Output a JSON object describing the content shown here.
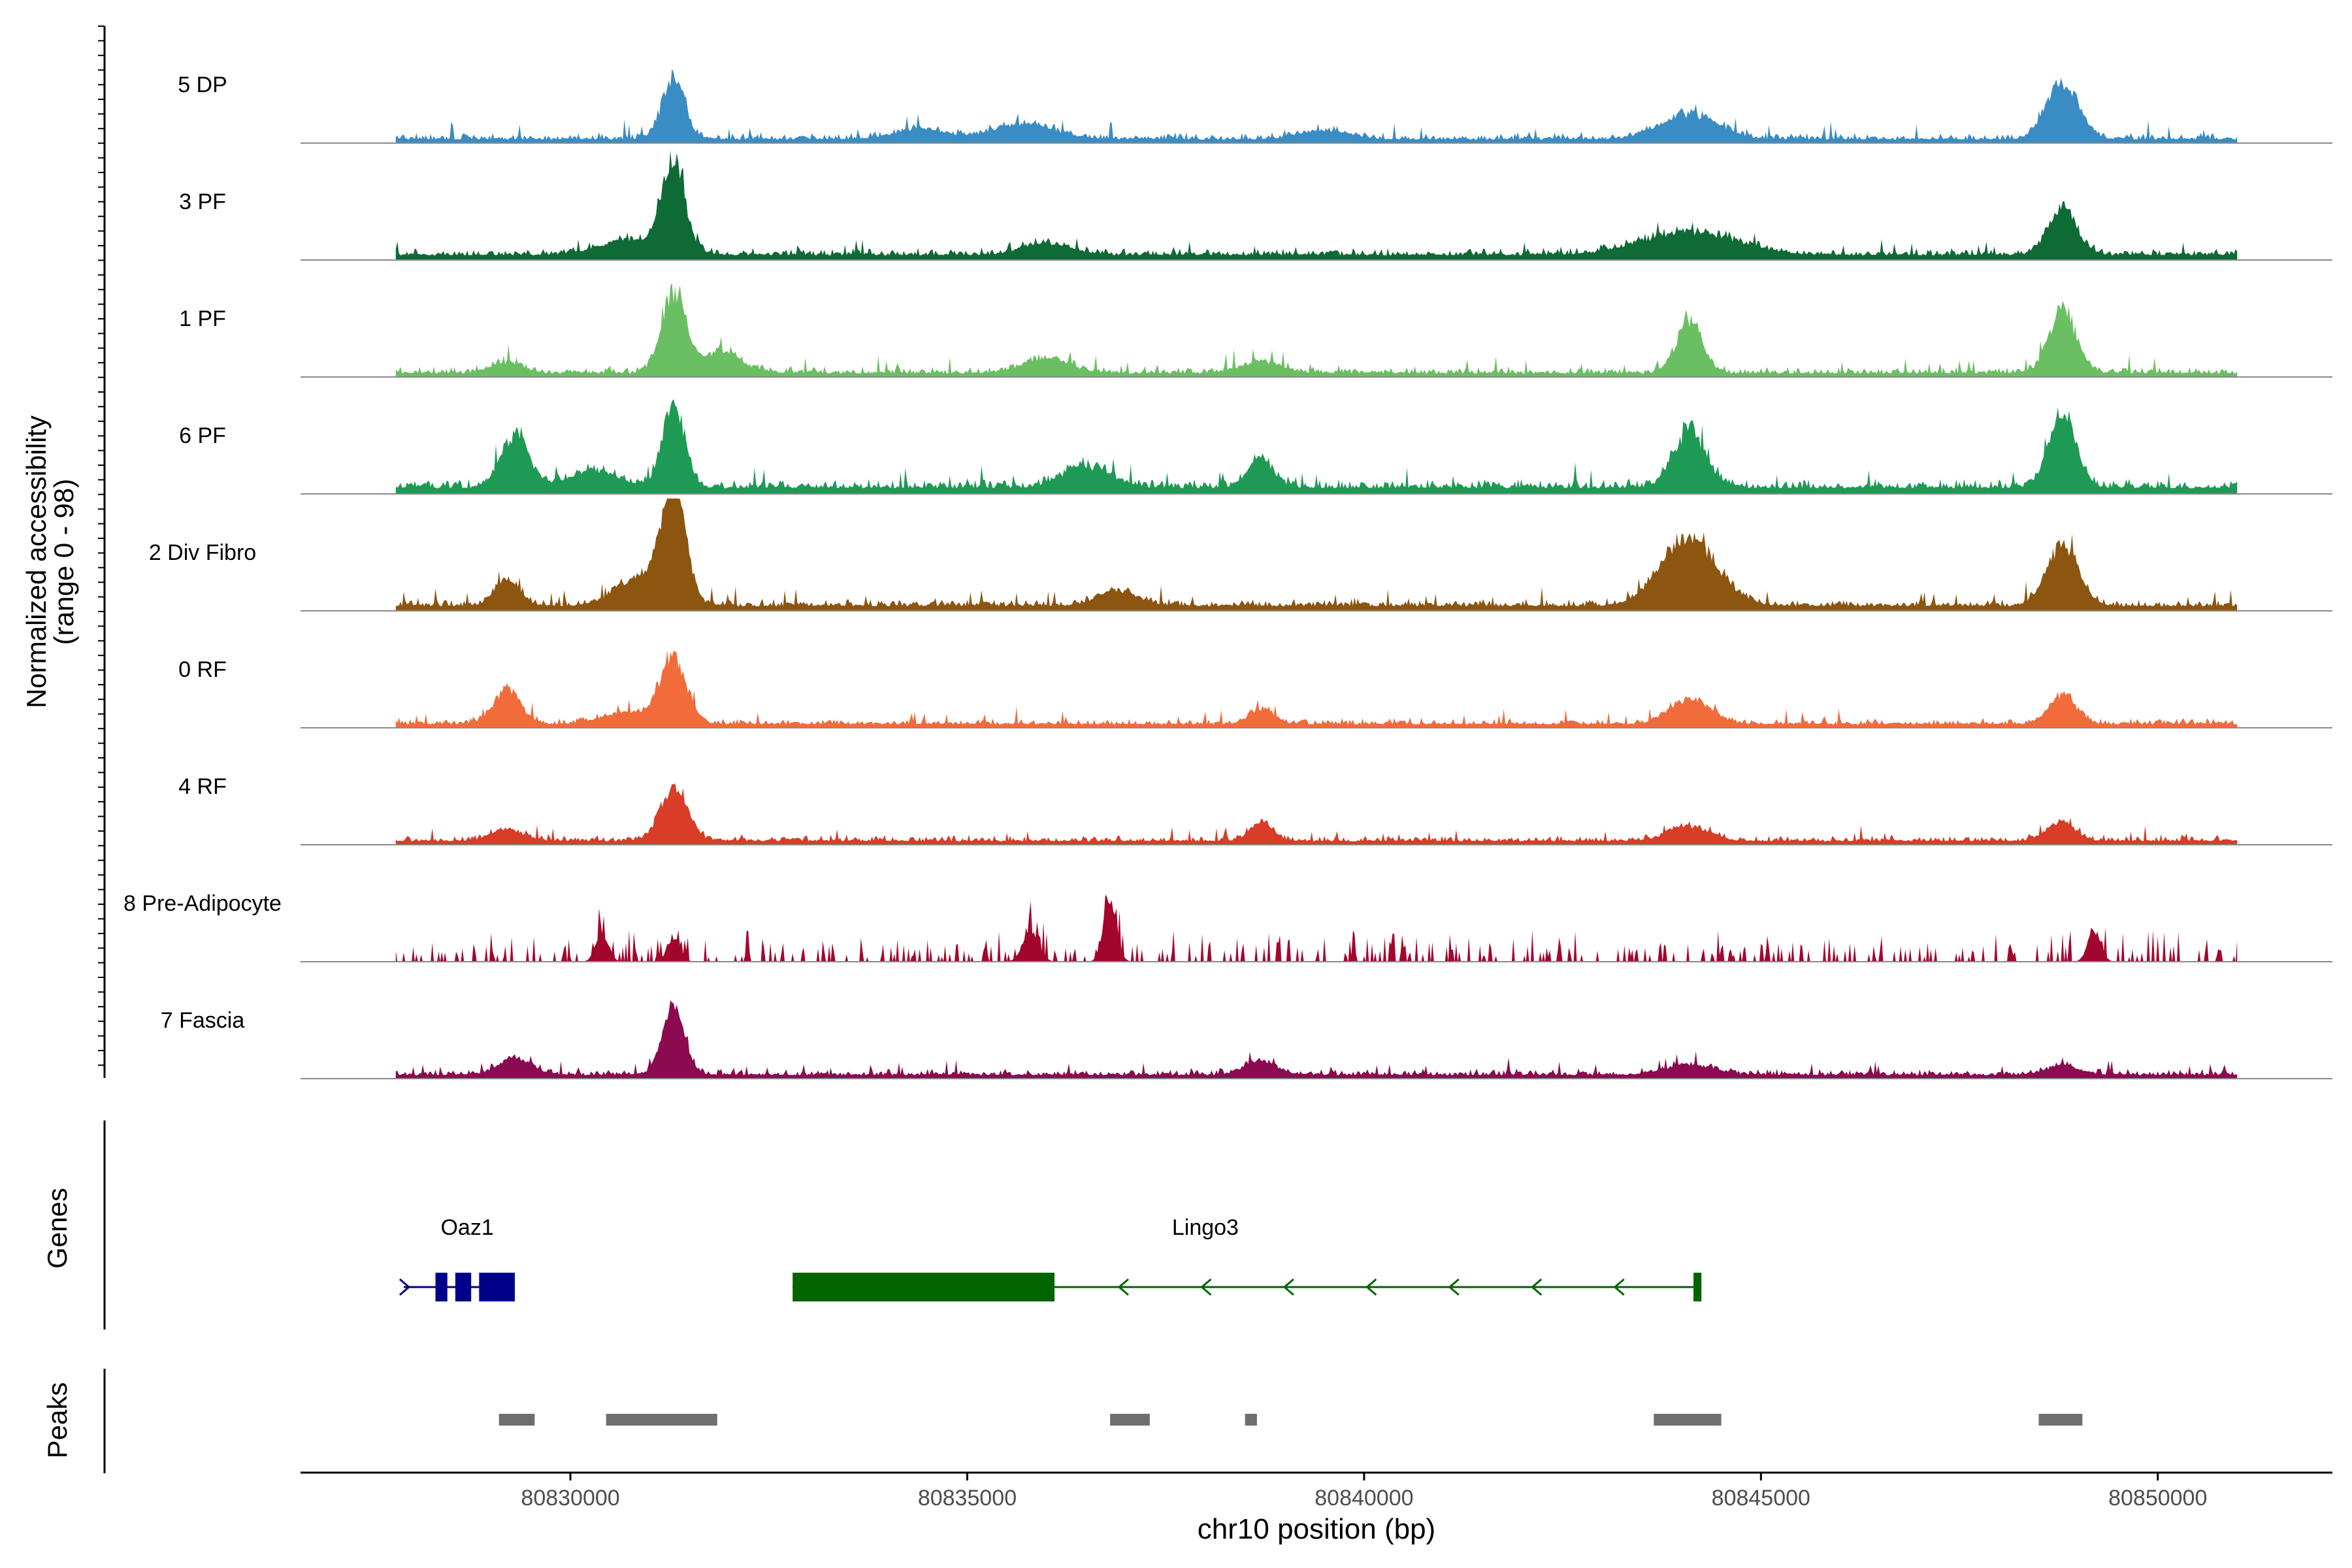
{
  "chart_data": {
    "type": "area",
    "title": "",
    "ylabel_line1": "Normalized accessibility",
    "ylabel_line2": "(range 0 - 98)",
    "ylim": [
      0,
      98
    ],
    "xlabel": "chr10 position (bp)",
    "xlim": [
      80826600,
      80852200
    ],
    "x_ticks": [
      80830000,
      80835000,
      80840000,
      80845000,
      80850000
    ],
    "x_tick_labels": [
      "80830000",
      "80835000",
      "80840000",
      "80845000",
      "80850000"
    ],
    "region": [
      80827800,
      80851000
    ],
    "series": [
      {
        "name": "5 DP",
        "color": "#3a8cc4",
        "seed": 11,
        "baseline": 3,
        "noise": 7,
        "sparse": false,
        "peaks": [
          [
            80831300,
            55,
            140
          ],
          [
            80835700,
            13,
            400
          ],
          [
            80844100,
            22,
            350
          ],
          [
            80848800,
            50,
            200
          ],
          [
            80834400,
            9,
            300
          ],
          [
            80839500,
            8,
            300
          ]
        ]
      },
      {
        "name": "3 PF",
        "color": "#0e6b35",
        "seed": 23,
        "baseline": 4,
        "noise": 7,
        "sparse": false,
        "peaks": [
          [
            80831300,
            78,
            140
          ],
          [
            80830800,
            14,
            400
          ],
          [
            80844100,
            20,
            600
          ],
          [
            80848800,
            40,
            180
          ],
          [
            80836000,
            10,
            300
          ]
        ]
      },
      {
        "name": "1 PF",
        "color": "#6bbf63",
        "seed": 37,
        "baseline": 3,
        "noise": 7,
        "sparse": false,
        "peaks": [
          [
            80831300,
            70,
            150
          ],
          [
            80831900,
            18,
            250
          ],
          [
            80844100,
            45,
            160
          ],
          [
            80848800,
            55,
            170
          ],
          [
            80836000,
            12,
            300
          ],
          [
            80838700,
            10,
            250
          ],
          [
            80829200,
            9,
            200
          ]
        ]
      },
      {
        "name": "6 PF",
        "color": "#1f9a54",
        "seed": 41,
        "baseline": 5,
        "noise": 9,
        "sparse": false,
        "peaks": [
          [
            80831300,
            72,
            140
          ],
          [
            80829300,
            45,
            180
          ],
          [
            80844100,
            50,
            200
          ],
          [
            80848800,
            65,
            170
          ],
          [
            80838700,
            25,
            160
          ],
          [
            80836500,
            18,
            300
          ],
          [
            80830300,
            15,
            300
          ]
        ]
      },
      {
        "name": "2 Div Fibro",
        "color": "#8c5510",
        "seed": 53,
        "baseline": 4,
        "noise": 7,
        "sparse": false,
        "peaks": [
          [
            80831300,
            98,
            150
          ],
          [
            80830900,
            25,
            300
          ],
          [
            80829200,
            22,
            160
          ],
          [
            80844100,
            60,
            350
          ],
          [
            80848800,
            52,
            200
          ],
          [
            80836900,
            13,
            250
          ]
        ]
      },
      {
        "name": "0 RF",
        "color": "#f26b3a",
        "seed": 67,
        "baseline": 3,
        "noise": 6,
        "sparse": false,
        "peaks": [
          [
            80831300,
            55,
            170
          ],
          [
            80829200,
            30,
            170
          ],
          [
            80844100,
            22,
            250
          ],
          [
            80848800,
            25,
            170
          ],
          [
            80838700,
            13,
            150
          ],
          [
            80830700,
            10,
            300
          ]
        ]
      },
      {
        "name": "4 RF",
        "color": "#d93c27",
        "seed": 79,
        "baseline": 3,
        "noise": 6,
        "sparse": false,
        "peaks": [
          [
            80831300,
            45,
            170
          ],
          [
            80838700,
            15,
            150
          ],
          [
            80844100,
            13,
            250
          ],
          [
            80848800,
            16,
            170
          ],
          [
            80829200,
            10,
            200
          ]
        ]
      },
      {
        "name": "8 Pre-Adipocyte",
        "color": "#a3062d",
        "seed": 83,
        "baseline": 0,
        "noise": 28,
        "sparse": true,
        "peaks": [
          [
            80836800,
            55,
            80
          ],
          [
            80849200,
            28,
            80
          ],
          [
            80831300,
            22,
            80
          ],
          [
            80830400,
            25,
            80
          ],
          [
            80835800,
            28,
            100
          ]
        ]
      },
      {
        "name": "7 Fascia",
        "color": "#8b0a50",
        "seed": 97,
        "baseline": 3,
        "noise": 6,
        "sparse": false,
        "peaks": [
          [
            80831300,
            58,
            140
          ],
          [
            80829300,
            15,
            200
          ],
          [
            80838700,
            12,
            200
          ],
          [
            80848800,
            8,
            200
          ],
          [
            80844100,
            9,
            300
          ]
        ]
      }
    ],
    "genes": {
      "title": "Genes",
      "items": [
        {
          "name": "Oaz1",
          "strand": "+",
          "color": "#00008b",
          "start": 80827900,
          "end": 80829300,
          "label_position": 80828700,
          "exons": [
            [
              80828300,
              80828450
            ],
            [
              80828550,
              80828750
            ],
            [
              80828850,
              80829300
            ]
          ]
        },
        {
          "name": "Lingo3",
          "strand": "-",
          "color": "#006400",
          "start": 80832800,
          "end": 80844250,
          "label_position": 80838000,
          "exons": [
            [
              80832800,
              80836100
            ],
            [
              80844150,
              80844250
            ]
          ]
        }
      ]
    },
    "peaks": {
      "title": "Peaks",
      "color": "#6e6e6e",
      "intervals": [
        [
          80829100,
          80829550
        ],
        [
          80830450,
          80831850
        ],
        [
          80836800,
          80837300
        ],
        [
          80838500,
          80838650
        ],
        [
          80843650,
          80844500
        ],
        [
          80848500,
          80849050
        ]
      ]
    }
  }
}
